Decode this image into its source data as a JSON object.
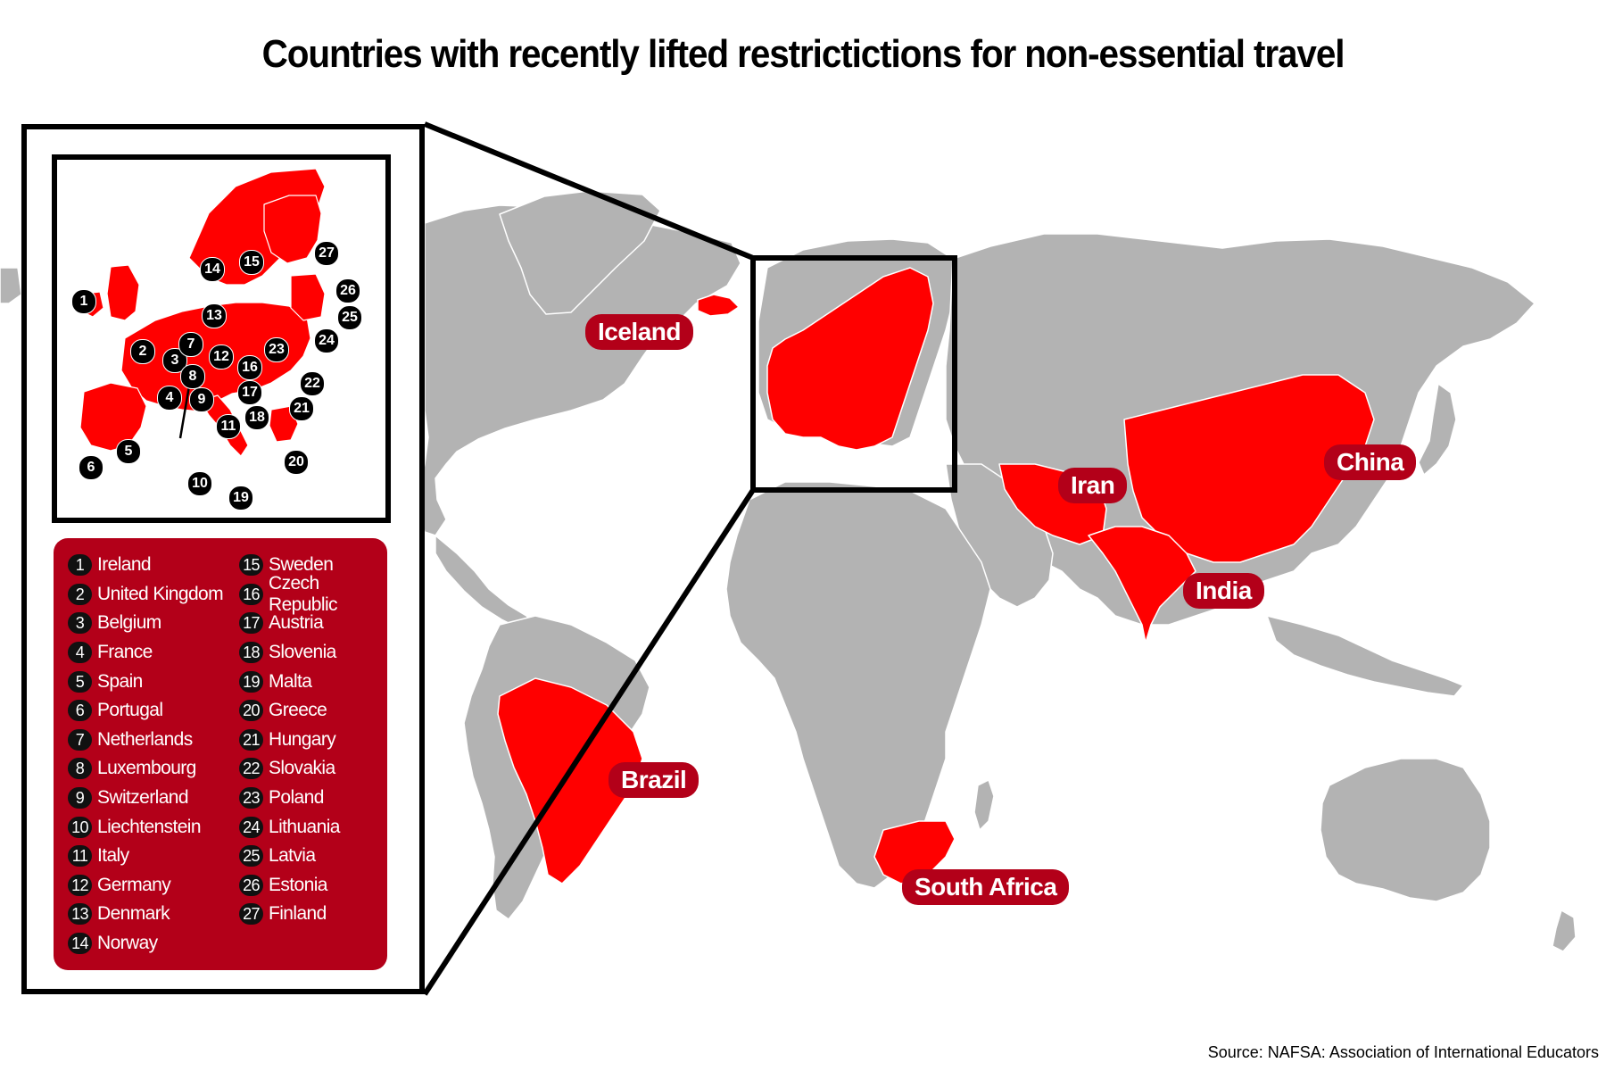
{
  "title": "Countries with recently lifted restrictictions for non-essential travel",
  "source": "Source: NAFSA: Association of International Educators",
  "colors": {
    "highlight": "#ff0000",
    "label_bg": "#b30019",
    "land": "#b3b3b3",
    "ocean": "#ffffff"
  },
  "map_labels": {
    "iceland": "Iceland",
    "iran": "Iran",
    "china": "China",
    "india": "India",
    "brazil": "Brazil",
    "south_africa": "South Africa"
  },
  "legend": [
    {
      "num": "1",
      "name": "Ireland"
    },
    {
      "num": "2",
      "name": "United Kingdom"
    },
    {
      "num": "3",
      "name": "Belgium"
    },
    {
      "num": "4",
      "name": "France"
    },
    {
      "num": "5",
      "name": "Spain"
    },
    {
      "num": "6",
      "name": "Portugal"
    },
    {
      "num": "7",
      "name": "Netherlands"
    },
    {
      "num": "8",
      "name": "Luxembourg"
    },
    {
      "num": "9",
      "name": "Switzerland"
    },
    {
      "num": "10",
      "name": "Liechtenstein"
    },
    {
      "num": "11",
      "name": "Italy"
    },
    {
      "num": "12",
      "name": "Germany"
    },
    {
      "num": "13",
      "name": "Denmark"
    },
    {
      "num": "14",
      "name": "Norway"
    },
    {
      "num": "15",
      "name": "Sweden"
    },
    {
      "num": "16",
      "name": "Czech Republic"
    },
    {
      "num": "17",
      "name": "Austria"
    },
    {
      "num": "18",
      "name": "Slovenia"
    },
    {
      "num": "19",
      "name": "Malta"
    },
    {
      "num": "20",
      "name": "Greece"
    },
    {
      "num": "21",
      "name": "Hungary"
    },
    {
      "num": "22",
      "name": "Slovakia"
    },
    {
      "num": "23",
      "name": "Poland"
    },
    {
      "num": "24",
      "name": "Lithuania"
    },
    {
      "num": "25",
      "name": "Latvia"
    },
    {
      "num": "26",
      "name": "Estonia"
    },
    {
      "num": "27",
      "name": "Finland"
    }
  ]
}
